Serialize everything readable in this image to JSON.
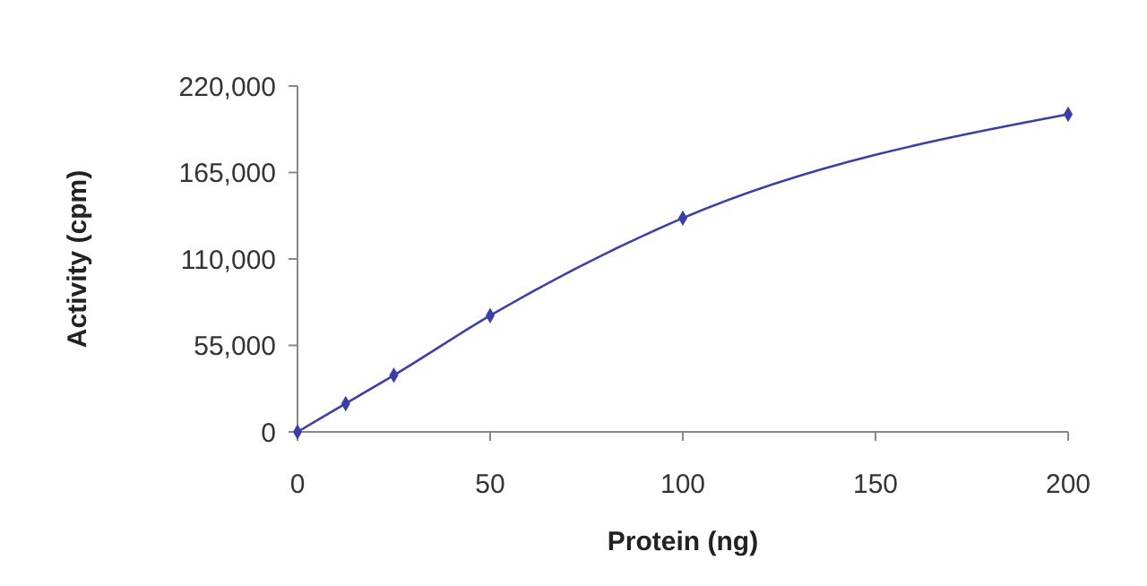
{
  "chart_data": {
    "type": "line",
    "xlabel": "Protein (ng)",
    "ylabel": "Activity (cpm)",
    "x": [
      0,
      12.5,
      25,
      50,
      100,
      200
    ],
    "series": [
      {
        "color": "#3a3fa8",
        "values": [
          0,
          18000,
          36000,
          74000,
          136000,
          202000
        ]
      }
    ],
    "xlim": [
      0,
      200
    ],
    "xticks": [
      0,
      50,
      100,
      150,
      200
    ],
    "ylim": [
      0,
      220000
    ],
    "yticks": [
      {
        "value": 0,
        "label": "0"
      },
      {
        "value": 55000,
        "label": "55,000"
      },
      {
        "value": 110000,
        "label": "110,000"
      },
      {
        "value": 165000,
        "label": "165,000"
      },
      {
        "value": 220000,
        "label": "220,000"
      }
    ],
    "marker": "diamond"
  }
}
